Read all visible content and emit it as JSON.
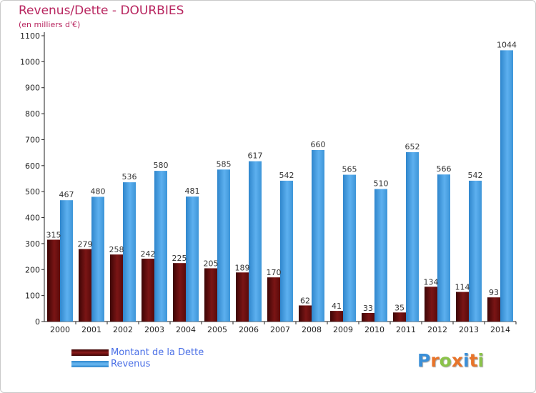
{
  "chart_data": {
    "type": "bar",
    "title": "Revenus/Dette - DOURBIES",
    "subtitle": "(en milliers d'€)",
    "categories": [
      "2000",
      "2001",
      "2002",
      "2003",
      "2004",
      "2005",
      "2006",
      "2007",
      "2008",
      "2009",
      "2010",
      "2011",
      "2012",
      "2013",
      "2014"
    ],
    "series": [
      {
        "name": "Montant de la Dette",
        "color": "#6b0f0f",
        "values": [
          315,
          279,
          258,
          242,
          225,
          205,
          189,
          170,
          62,
          41,
          33,
          35,
          134,
          114,
          93
        ]
      },
      {
        "name": "Revenus",
        "color": "#4aa3e6",
        "values": [
          467,
          480,
          536,
          580,
          481,
          585,
          617,
          542,
          660,
          565,
          510,
          652,
          566,
          542,
          1044
        ]
      }
    ],
    "ylim": [
      0,
      1100
    ],
    "yticks": [
      0,
      100,
      200,
      300,
      400,
      500,
      600,
      700,
      800,
      900,
      1000,
      1100
    ],
    "grid": false,
    "legend_position": "bottom-left"
  },
  "brand": {
    "letters": [
      "P",
      "r",
      "o",
      "x",
      "i",
      "t",
      "i"
    ],
    "colors": [
      "#3a8fd8",
      "#e8742a",
      "#8bc34a",
      "#e8742a",
      "#3a8fd8",
      "#e8742a",
      "#8bc34a"
    ]
  }
}
